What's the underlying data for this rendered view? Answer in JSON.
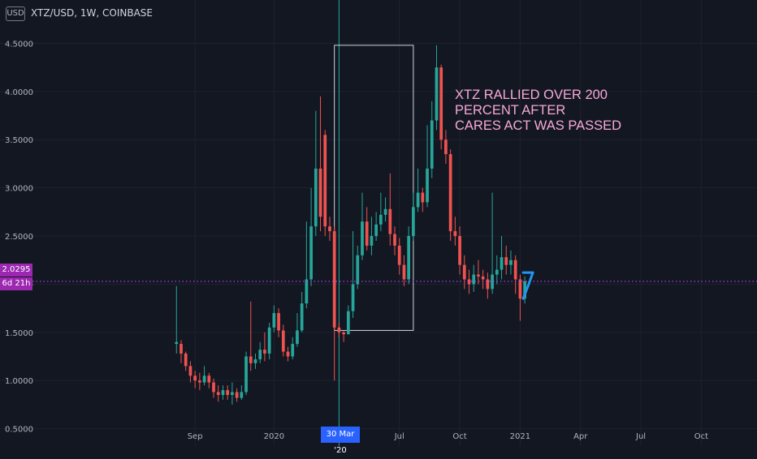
{
  "header": {
    "currency_badge": "USD",
    "symbol_title": "XTZ/USD, 1W, COINBASE"
  },
  "annotation": {
    "lines": [
      "XTZ RALLIED OVER 200",
      "PERCENT AFTER",
      "CARES ACT WAS PASSED"
    ],
    "color": "#f7a8d8"
  },
  "price_line": {
    "value": 2.0295,
    "label": "2.0295",
    "countdown": "6d 21h",
    "color": "#c83cff"
  },
  "crosshair": {
    "date_label": "30 Mar '20",
    "week_index": 35
  },
  "highlight_box": {
    "start_week": 34,
    "end_week": 51,
    "low": 1.52,
    "high": 4.48
  },
  "colors": {
    "up": "#26a69a",
    "down": "#ef5350",
    "background": "#131722",
    "grid": "#1e222d",
    "axis_text": "#b2b5be",
    "annotation_stroke": "#2196f3"
  },
  "chart_data": {
    "type": "candlestick",
    "title": "XTZ/USD, 1W, COINBASE",
    "y_axis": {
      "ticks": [
        0.5,
        1.0,
        1.5,
        2.0,
        2.5,
        3.0,
        3.5,
        4.0,
        4.5
      ],
      "tick_labels": [
        "0.5000",
        "1.0000",
        "1.5000",
        "2.0000",
        "2.5000",
        "3.0000",
        "3.5000",
        "4.0000",
        "4.5000"
      ],
      "range": [
        0.32,
        4.95
      ]
    },
    "x_axis": {
      "ticks": [
        {
          "label": "Sep",
          "week": 4
        },
        {
          "label": "2020",
          "week": 21
        },
        {
          "label": "Jul",
          "week": 48
        },
        {
          "label": "Oct",
          "week": 61
        },
        {
          "label": "2021",
          "week": 74
        },
        {
          "label": "Apr",
          "week": 87
        },
        {
          "label": "Jul",
          "week": 100
        },
        {
          "label": "Oct",
          "week": 113
        }
      ],
      "week_range": [
        -38,
        125
      ]
    },
    "candles": [
      [
        1.38,
        1.4,
        1.28,
        1.98
      ],
      [
        1.38,
        1.28,
        1.18,
        1.42
      ],
      [
        1.28,
        1.15,
        1.1,
        1.3
      ],
      [
        1.15,
        1.05,
        0.98,
        1.2
      ],
      [
        1.05,
        1.0,
        0.92,
        1.1
      ],
      [
        1.0,
        0.98,
        0.9,
        1.08
      ],
      [
        0.98,
        1.05,
        0.95,
        1.15
      ],
      [
        1.05,
        0.98,
        0.92,
        1.08
      ],
      [
        0.98,
        0.88,
        0.82,
        1.02
      ],
      [
        0.88,
        0.85,
        0.78,
        0.95
      ],
      [
        0.85,
        0.9,
        0.8,
        0.95
      ],
      [
        0.9,
        0.85,
        0.8,
        0.95
      ],
      [
        0.85,
        0.88,
        0.75,
        0.98
      ],
      [
        0.88,
        0.82,
        0.78,
        0.92
      ],
      [
        0.82,
        0.88,
        0.8,
        0.95
      ],
      [
        0.88,
        1.25,
        0.85,
        1.3
      ],
      [
        1.25,
        1.18,
        1.1,
        1.82
      ],
      [
        1.18,
        1.22,
        1.12,
        1.28
      ],
      [
        1.22,
        1.32,
        1.18,
        1.4
      ],
      [
        1.32,
        1.28,
        1.2,
        1.5
      ],
      [
        1.28,
        1.55,
        1.22,
        1.6
      ],
      [
        1.55,
        1.7,
        1.5,
        1.78
      ],
      [
        1.7,
        1.52,
        1.45,
        1.75
      ],
      [
        1.52,
        1.3,
        1.25,
        1.58
      ],
      [
        1.3,
        1.25,
        1.2,
        1.35
      ],
      [
        1.25,
        1.38,
        1.22,
        1.45
      ],
      [
        1.38,
        1.52,
        1.35,
        1.7
      ],
      [
        1.52,
        1.8,
        1.5,
        1.92
      ],
      [
        1.8,
        2.05,
        1.75,
        2.65
      ],
      [
        2.05,
        2.6,
        1.98,
        3.0
      ],
      [
        2.6,
        3.2,
        2.5,
        3.8
      ],
      [
        3.2,
        2.7,
        2.55,
        3.95
      ],
      [
        3.55,
        2.6,
        2.5,
        3.6
      ],
      [
        2.6,
        2.55,
        2.45,
        2.7
      ],
      [
        2.55,
        1.55,
        1.0,
        2.6
      ],
      [
        1.55,
        1.5,
        1.45,
        1.6
      ],
      [
        1.5,
        1.48,
        1.4,
        1.52
      ],
      [
        1.48,
        1.72,
        1.48,
        1.78
      ],
      [
        1.72,
        2.0,
        1.65,
        2.55
      ],
      [
        2.0,
        2.3,
        1.95,
        2.4
      ],
      [
        2.3,
        2.65,
        2.25,
        2.95
      ],
      [
        2.65,
        2.4,
        2.35,
        2.8
      ],
      [
        2.4,
        2.5,
        2.3,
        2.7
      ],
      [
        2.5,
        2.62,
        2.45,
        2.75
      ],
      [
        2.62,
        2.72,
        2.55,
        2.95
      ],
      [
        2.72,
        2.78,
        2.65,
        2.9
      ],
      [
        2.78,
        2.52,
        2.4,
        3.15
      ],
      [
        2.52,
        2.4,
        2.3,
        2.6
      ],
      [
        2.4,
        2.2,
        2.1,
        2.48
      ],
      [
        2.2,
        2.05,
        1.98,
        2.3
      ],
      [
        2.05,
        2.5,
        2.0,
        2.6
      ],
      [
        2.5,
        2.8,
        2.45,
        2.95
      ],
      [
        2.8,
        2.95,
        2.75,
        3.2
      ],
      [
        2.95,
        2.85,
        2.75,
        3.0
      ],
      [
        2.85,
        3.2,
        2.8,
        3.65
      ],
      [
        3.2,
        3.7,
        3.1,
        3.9
      ],
      [
        3.7,
        4.25,
        3.6,
        4.48
      ],
      [
        4.25,
        3.5,
        3.4,
        4.28
      ],
      [
        3.5,
        3.35,
        3.25,
        3.6
      ],
      [
        3.35,
        2.55,
        2.45,
        3.4
      ],
      [
        2.55,
        2.5,
        2.4,
        2.7
      ],
      [
        2.5,
        2.2,
        2.1,
        2.6
      ],
      [
        2.2,
        2.05,
        1.95,
        2.3
      ],
      [
        2.05,
        2.0,
        1.9,
        2.15
      ],
      [
        2.0,
        2.1,
        1.92,
        2.2
      ],
      [
        2.1,
        2.08,
        2.0,
        2.25
      ],
      [
        2.08,
        2.05,
        1.95,
        2.15
      ],
      [
        2.05,
        1.95,
        1.85,
        2.12
      ],
      [
        1.95,
        2.1,
        1.9,
        2.95
      ],
      [
        2.1,
        2.15,
        2.0,
        2.3
      ],
      [
        2.15,
        2.28,
        2.05,
        2.5
      ],
      [
        2.28,
        2.2,
        2.1,
        2.4
      ],
      [
        2.2,
        2.25,
        2.1,
        2.35
      ],
      [
        2.25,
        2.05,
        1.9,
        2.3
      ],
      [
        2.05,
        1.85,
        1.62,
        2.1
      ],
      [
        1.85,
        2.03,
        1.8,
        2.08
      ]
    ]
  }
}
